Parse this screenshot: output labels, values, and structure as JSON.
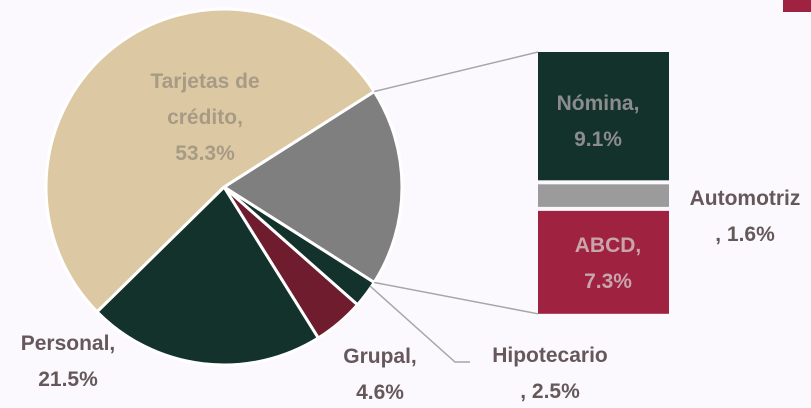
{
  "chart_data": {
    "type": "pie-of-bar",
    "pie": {
      "categories": [
        "Hipotecario",
        "Grupal,",
        "Personal,",
        "Tarjetas de crédito,"
      ],
      "values": [
        2.5,
        4.6,
        21.5,
        53.3
      ],
      "value_labels": [
        ", 2.5%",
        "4.6%",
        "21.5%",
        "53.3%"
      ],
      "colors": [
        "#13322b",
        "#6f1d2e",
        "#13322b",
        "#dcc9a3"
      ]
    },
    "other_color": "#7f7f7f",
    "bar": {
      "categories": [
        "Nómina,",
        "Automotriz",
        "ABCD,"
      ],
      "values": [
        9.1,
        1.6,
        7.3
      ],
      "value_labels": [
        "9.1%",
        ", 1.6%",
        "7.3%"
      ],
      "colors": [
        "#13322b",
        "#9b9b9b",
        "#9f2241"
      ]
    }
  }
}
